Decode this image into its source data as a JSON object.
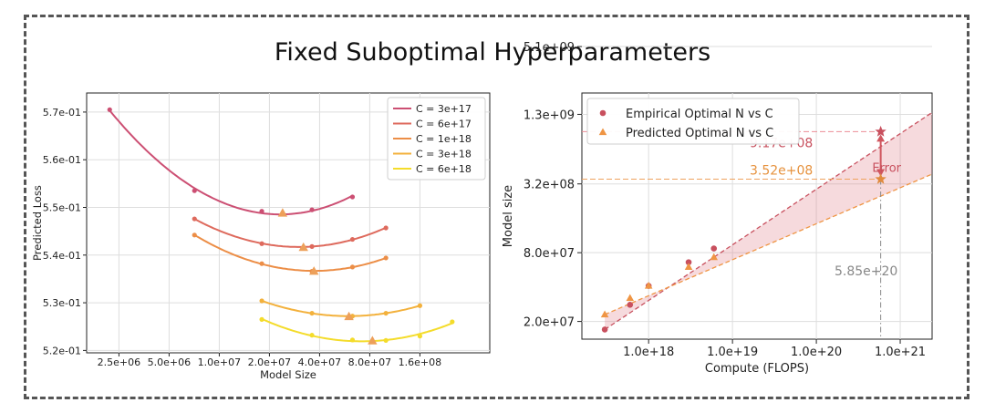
{
  "title": "Fixed Suboptimal Hyperparameters",
  "chart_data": [
    {
      "type": "line",
      "title": "",
      "xlabel": "Model Size",
      "ylabel": "Predicted Loss",
      "xscale": "log",
      "xlim": [
        1600000.0,
        420000000.0
      ],
      "ylim": [
        0.5195,
        0.574
      ],
      "xticks": [
        {
          "v": 2500000.0,
          "label": "2.5e+06"
        },
        {
          "v": 5000000.0,
          "label": "5.0e+06"
        },
        {
          "v": 10000000.0,
          "label": "1.0e+07"
        },
        {
          "v": 20000000.0,
          "label": "2.0e+07"
        },
        {
          "v": 40000000.0,
          "label": "4.0e+07"
        },
        {
          "v": 80000000.0,
          "label": "8.0e+07"
        },
        {
          "v": 160000000.0,
          "label": "1.6e+08"
        }
      ],
      "yticks": [
        {
          "v": 0.52,
          "label": "5.2e-01"
        },
        {
          "v": 0.53,
          "label": "5.3e-01"
        },
        {
          "v": 0.54,
          "label": "5.4e-01"
        },
        {
          "v": 0.55,
          "label": "5.5e-01"
        },
        {
          "v": 0.56,
          "label": "5.6e-01"
        },
        {
          "v": 0.57,
          "label": "5.7e-01"
        }
      ],
      "legend_position": "top-right",
      "series": [
        {
          "name": "C = 3e+17",
          "color": "#cc4f73",
          "x": [
            2200000.0,
            7100000.0,
            18000000.0,
            36000000.0,
            63000000.0
          ],
          "y": [
            0.5705,
            0.5535,
            0.5492,
            0.5495,
            0.5522
          ],
          "optimum": {
            "x": 24000000.0,
            "y": 0.5488
          }
        },
        {
          "name": "C = 6e+17",
          "color": "#de6a5d",
          "x": [
            7100000.0,
            18000000.0,
            36000000.0,
            63000000.0,
            100000000.0
          ],
          "y": [
            0.5476,
            0.5424,
            0.5418,
            0.5433,
            0.5457
          ],
          "optimum": {
            "x": 32000000.0,
            "y": 0.5416
          }
        },
        {
          "name": "C = 1e+18",
          "color": "#ec8e47",
          "x": [
            7100000.0,
            18000000.0,
            36000000.0,
            63000000.0,
            100000000.0
          ],
          "y": [
            0.5442,
            0.5382,
            0.5366,
            0.5375,
            0.5394
          ],
          "optimum": {
            "x": 37000000.0,
            "y": 0.5366
          }
        },
        {
          "name": "C = 3e+18",
          "color": "#f3b13c",
          "x": [
            18000000.0,
            36000000.0,
            63000000.0,
            100000000.0,
            160000000.0
          ],
          "y": [
            0.5304,
            0.5278,
            0.5272,
            0.5278,
            0.5294
          ],
          "optimum": {
            "x": 60000000.0,
            "y": 0.5271
          }
        },
        {
          "name": "C = 6e+18",
          "color": "#f4dc2b",
          "x": [
            18000000.0,
            36000000.0,
            63000000.0,
            100000000.0,
            160000000.0,
            250000000.0
          ],
          "y": [
            0.5265,
            0.5232,
            0.5222,
            0.5221,
            0.523,
            0.526
          ],
          "optimum": {
            "x": 83000000.0,
            "y": 0.522
          }
        }
      ]
    },
    {
      "type": "scatter",
      "title": "",
      "xlabel": "Compute (FLOPS)",
      "ylabel": "Model size",
      "xscale": "log",
      "yscale": "log",
      "xlim": [
        1.6e+17,
        2.4e+21
      ],
      "ylim": [
        14000000.0,
        2000000000.0
      ],
      "xticks": [
        {
          "v": 1e+18,
          "label": "1.0e+18"
        },
        {
          "v": 1e+19,
          "label": "1.0e+19"
        },
        {
          "v": 1e+20,
          "label": "1.0e+20"
        },
        {
          "v": 1e+21,
          "label": "1.0e+21"
        }
      ],
      "yticks": [
        {
          "v": 20000000.0,
          "label": "2.0e+07"
        },
        {
          "v": 80000000.0,
          "label": "8.0e+07"
        },
        {
          "v": 320000000.0,
          "label": "3.2e+08"
        },
        {
          "v": 1300000000.0,
          "label": "1.3e+09"
        },
        {
          "v": 5100000000.0,
          "label": "5.1e+09"
        }
      ],
      "legend_position": "top-left",
      "series": [
        {
          "name": "Empirical Optimal N vs C",
          "color": "#c8505e",
          "marker": "circle",
          "x": [
            3e+17,
            6e+17,
            1e+18,
            3e+18,
            6e+18
          ],
          "y": [
            17000000.0,
            28000000.0,
            41000000.0,
            66000000.0,
            87000000.0
          ]
        },
        {
          "name": "Predicted Optimal N vs C",
          "color": "#ef9544",
          "marker": "triangle",
          "x": [
            3e+17,
            6e+17,
            1e+18,
            3e+18,
            6e+18
          ],
          "y": [
            23000000.0,
            32000000.0,
            41000000.0,
            60000000.0,
            73000000.0
          ]
        }
      ],
      "fits": [
        {
          "color": "#c8505e",
          "from": [
            3e+17,
            17000000.0
          ],
          "to": [
            2.4e+21,
            1350000000.0
          ]
        },
        {
          "color": "#ef9544",
          "from": [
            3e+17,
            23000000.0
          ],
          "to": [
            2.4e+21,
            390000000.0
          ]
        }
      ],
      "annotations": {
        "empirical_value": {
          "label": "9.17e+08",
          "value": 917000000.0
        },
        "predicted_value": {
          "label": "3.52e+08",
          "value": 352000000.0
        },
        "compute_value": {
          "label": "5.85e+20",
          "value": 5.85e+20
        },
        "error_label": "Error"
      }
    }
  ]
}
